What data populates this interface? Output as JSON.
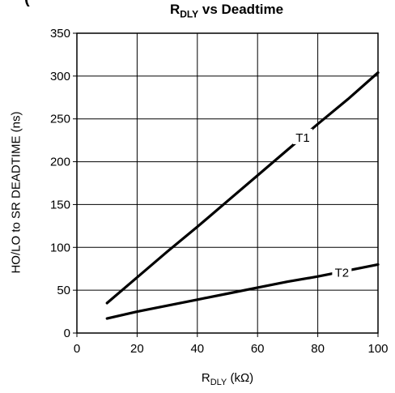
{
  "chart_data": {
    "type": "line",
    "title_top_fragment": "(",
    "title_main": "R",
    "title_sub": "DLY",
    "title_rest": " vs Deadtime",
    "xlabel_main": "R",
    "xlabel_sub": "DLY",
    "xlabel_rest": " (kΩ)",
    "ylabel": "HO/LO to SR DEADTIME (ns)",
    "xlim": [
      0,
      100
    ],
    "ylim": [
      0,
      350
    ],
    "xticks": [
      0,
      20,
      40,
      60,
      80,
      100
    ],
    "yticks": [
      0,
      50,
      100,
      150,
      200,
      250,
      300,
      350
    ],
    "grid": true,
    "series": [
      {
        "name": "T1",
        "x": [
          10,
          20,
          30,
          40,
          50,
          60,
          70,
          80,
          90,
          100
        ],
        "y": [
          35,
          65,
          95,
          124,
          154,
          184,
          214,
          244,
          273,
          304
        ]
      },
      {
        "name": "T2",
        "x": [
          10,
          20,
          30,
          40,
          50,
          60,
          70,
          80,
          90,
          100
        ],
        "y": [
          17,
          25,
          32,
          39,
          46,
          53,
          60,
          66,
          73,
          80
        ]
      }
    ]
  }
}
